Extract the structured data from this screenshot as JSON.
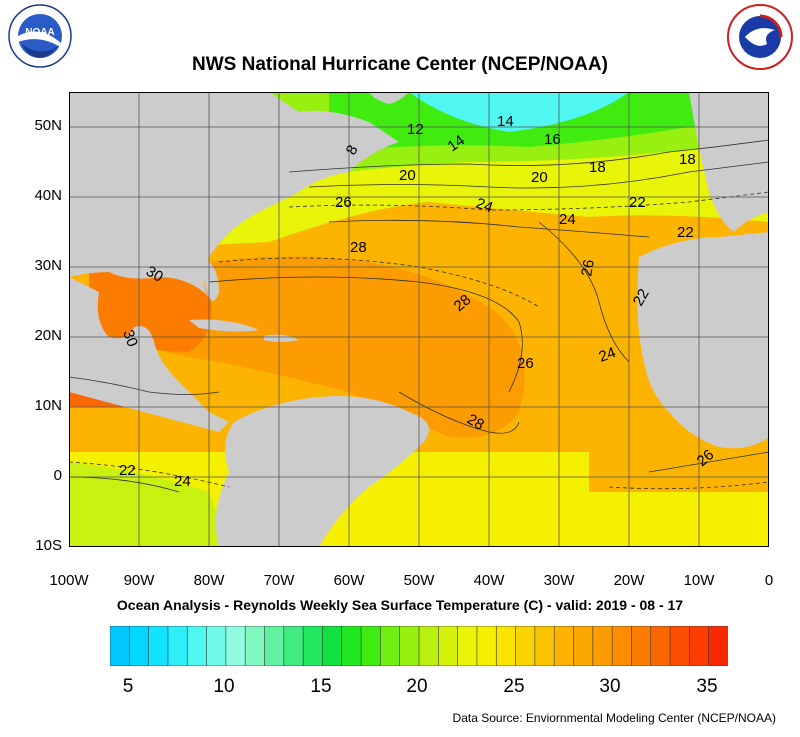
{
  "title": "NWS National Hurricane Center (NCEP/NOAA)",
  "subtitle": "Ocean Analysis - Reynolds Weekly Sea Surface Temperature (C) - valid: 2019 - 08 - 17",
  "source": "Data Source: Enviornmental Modeling Center (NCEP/NOAA)",
  "logos": {
    "left": {
      "text": "NOAA",
      "ring_text": "NATIONAL OCEANIC AND ATMOSPHERIC ADMINISTRATION · U.S. DEPARTMENT OF COMMERCE"
    },
    "right": {
      "ring_text": "NATIONAL WEATHER SERVICE"
    }
  },
  "map": {
    "lat_labels": [
      "50N",
      "40N",
      "30N",
      "20N",
      "10N",
      "0",
      "10S"
    ],
    "lon_labels": [
      "100W",
      "90W",
      "80W",
      "70W",
      "60W",
      "50W",
      "40W",
      "30W",
      "20W",
      "10W",
      "0"
    ],
    "lat_range": [
      -10,
      55
    ],
    "lon_range": [
      -100,
      0
    ],
    "grid": true,
    "land_color": "#cccccc",
    "contour_labels": [
      "12",
      "14",
      "14",
      "16",
      "18",
      "18",
      "8",
      "20",
      "20",
      "26",
      "24",
      "24",
      "22",
      "22",
      "28",
      "26",
      "30",
      "28",
      "22",
      "30",
      "26",
      "24",
      "28",
      "22",
      "24",
      "26"
    ]
  },
  "colorbar": {
    "tick_labels": [
      "5",
      "10",
      "15",
      "20",
      "25",
      "30",
      "35"
    ],
    "min": 4,
    "max": 36,
    "step": 1,
    "colors": [
      "#00c8ff",
      "#00d8ff",
      "#10e4ff",
      "#30eef8",
      "#50f6f0",
      "#70fae8",
      "#8ffce0",
      "#80f8c0",
      "#60f2a0",
      "#40ec80",
      "#20e660",
      "#10e040",
      "#20e820",
      "#40ec10",
      "#70f010",
      "#98f010",
      "#b8f010",
      "#d4f20a",
      "#e8f408",
      "#f4f000",
      "#f8e400",
      "#fad400",
      "#fcc400",
      "#fcb400",
      "#fca800",
      "#fc9c00",
      "#fc8c00",
      "#fc7c00",
      "#fc6800",
      "#fc5000",
      "#fc3c00",
      "#f82800"
    ]
  }
}
